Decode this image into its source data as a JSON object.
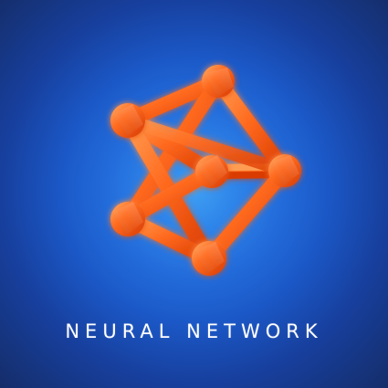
{
  "page": {
    "title": "NEURAL NETWORK"
  },
  "colors": {
    "background_center": "#3f9ff2",
    "background_edge": "#152d69",
    "network_primary": "#ff5a14",
    "network_highlight": "#ff9a4b",
    "network_shadow": "#d73700",
    "text": "#ffffff"
  },
  "icons": {
    "main_graphic": "neural-network-icon"
  }
}
